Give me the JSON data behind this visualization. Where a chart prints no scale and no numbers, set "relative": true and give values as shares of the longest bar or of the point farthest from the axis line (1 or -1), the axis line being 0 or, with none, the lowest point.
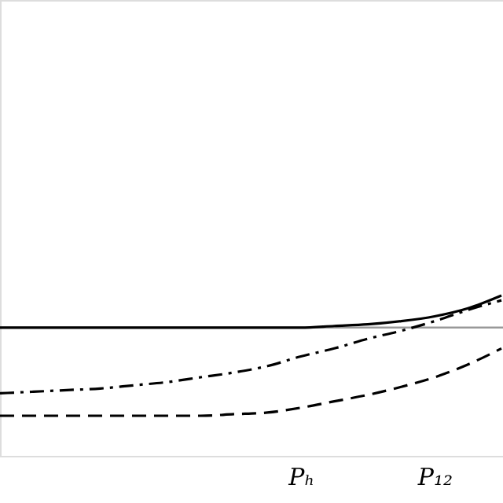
{
  "chart_data": {
    "type": "line",
    "relative": true,
    "categories": [
      null,
      null,
      null,
      null,
      null,
      null,
      null,
      null,
      null,
      "Pₕ",
      null,
      null,
      null,
      "P₁₂",
      null,
      null
    ],
    "series": [
      {
        "color": "#000000",
        "line_style": "solid",
        "values": [
          0.8,
          0.8,
          0.8,
          0.8,
          0.8,
          0.8,
          0.8,
          0.8,
          0.8,
          0.8,
          0.81,
          0.82,
          0.84,
          0.87,
          0.92,
          1.0
        ]
      },
      {
        "color": "#000000",
        "line_style": "dashdot",
        "values": [
          0.39,
          0.4,
          0.41,
          0.42,
          0.44,
          0.46,
          0.49,
          0.52,
          0.56,
          0.62,
          0.67,
          0.73,
          0.78,
          0.84,
          0.91,
          0.97
        ]
      },
      {
        "color": "#000000",
        "line_style": "dashed",
        "values": [
          0.25,
          0.25,
          0.25,
          0.25,
          0.25,
          0.25,
          0.25,
          0.26,
          0.27,
          0.3,
          0.34,
          0.38,
          0.43,
          0.49,
          0.57,
          0.67
        ]
      }
    ],
    "ref_lines": [
      {
        "axis": "y",
        "value": 0.8,
        "color": "#999999"
      }
    ],
    "grid": false,
    "tick_labels": "x"
  }
}
